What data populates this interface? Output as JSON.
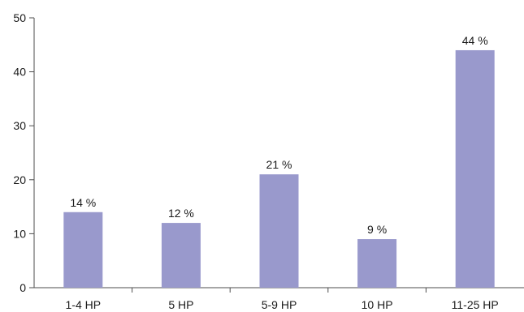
{
  "chart_data": {
    "type": "bar",
    "categories": [
      "1-4 HP",
      "5 HP",
      "5-9 HP",
      "10 HP",
      "11-25 HP"
    ],
    "values": [
      14,
      12,
      21,
      9,
      44
    ],
    "data_labels": [
      "14 %",
      "12 %",
      "21 %",
      "9 %",
      "44 %"
    ],
    "ylim": [
      0,
      50
    ],
    "yticks": [
      0,
      10,
      20,
      30,
      40,
      50
    ],
    "ytick_labels": [
      "0",
      "10",
      "20",
      "30",
      "40",
      "50"
    ],
    "grid": false,
    "legend": "none",
    "bar_color": "#9999cc"
  }
}
